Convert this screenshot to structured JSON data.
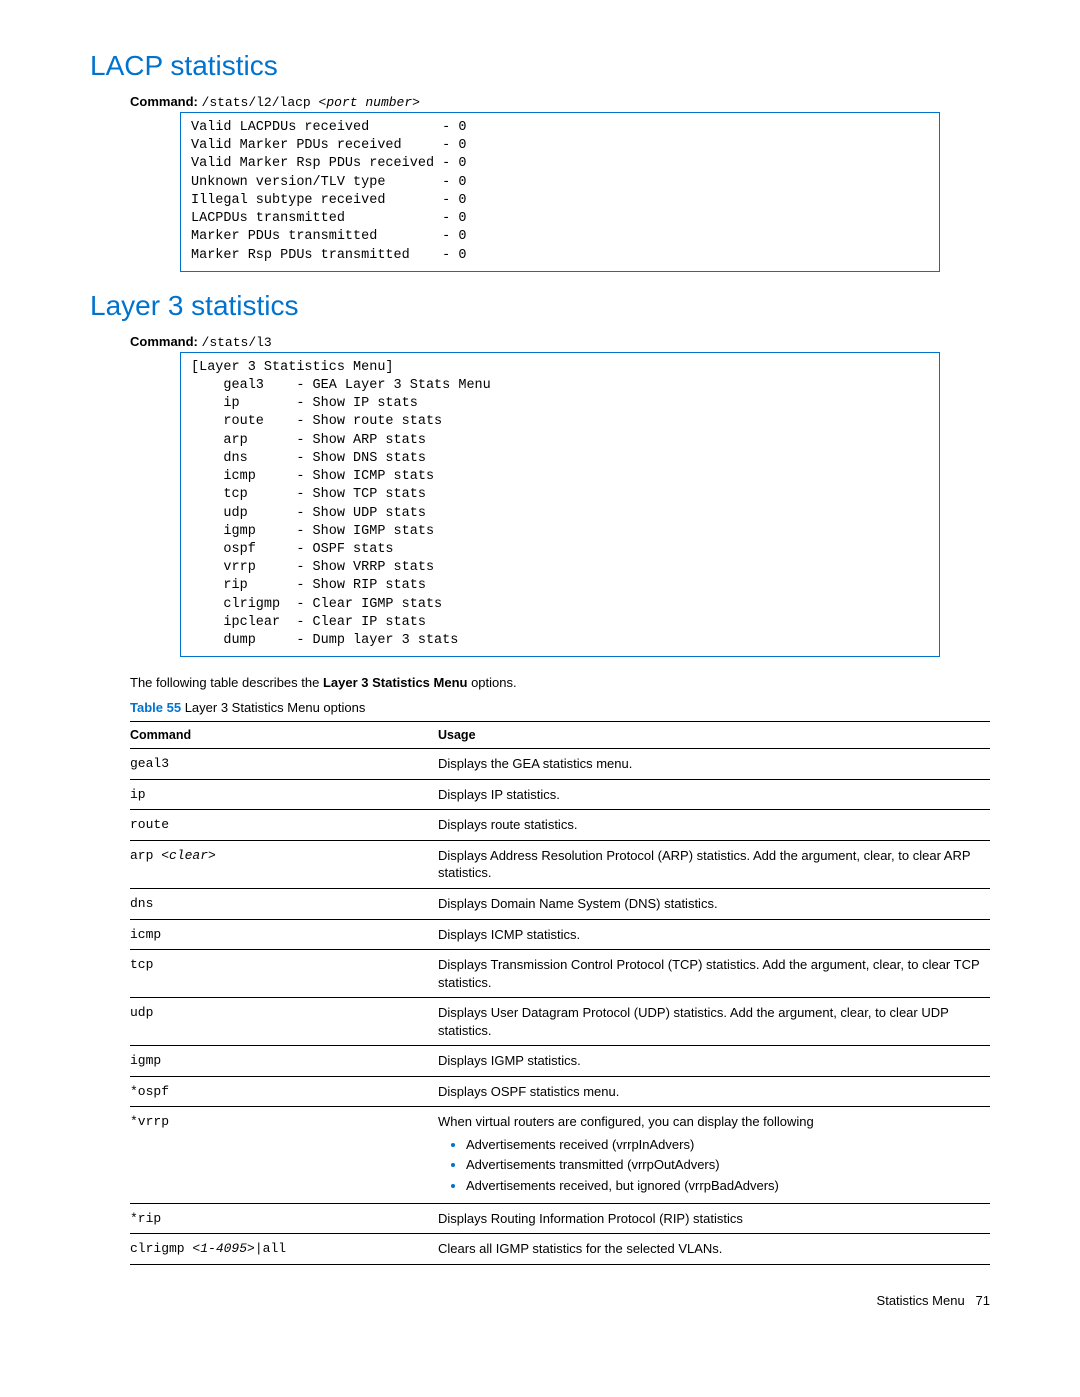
{
  "section1": {
    "heading": "LACP statistics",
    "command_label": "Command:",
    "command_path": "/stats/l2/lacp ",
    "command_arg": "<port number>",
    "codebox": "Valid LACPDUs received         - 0\nValid Marker PDUs received     - 0\nValid Marker Rsp PDUs received - 0\nUnknown version/TLV type       - 0\nIllegal subtype received       - 0\nLACPDUs transmitted            - 0\nMarker PDUs transmitted        - 0\nMarker Rsp PDUs transmitted    - 0"
  },
  "section2": {
    "heading": "Layer 3 statistics",
    "command_label": "Command:",
    "command_path": "/stats/l3",
    "codebox": "[Layer 3 Statistics Menu]\n    geal3    - GEA Layer 3 Stats Menu\n    ip       - Show IP stats\n    route    - Show route stats\n    arp      - Show ARP stats\n    dns      - Show DNS stats\n    icmp     - Show ICMP stats\n    tcp      - Show TCP stats\n    udp      - Show UDP stats\n    igmp     - Show IGMP stats\n    ospf     - OSPF stats\n    vrrp     - Show VRRP stats\n    rip      - Show RIP stats\n    clrigmp  - Clear IGMP stats\n    ipclear  - Clear IP stats\n    dump     - Dump layer 3 stats",
    "desc_prefix": "The following table describes the ",
    "desc_bold": "Layer 3 Statistics Menu",
    "desc_suffix": " options.",
    "caption_label": "Table 55",
    "caption_text": "Layer 3 Statistics Menu options",
    "columns": [
      "Command",
      "Usage"
    ],
    "rows": [
      {
        "cmd": "geal3",
        "usage_html": "Displays the GEA statistics menu."
      },
      {
        "cmd": "ip",
        "usage_html": "Displays IP statistics."
      },
      {
        "cmd": "route",
        "usage_html": "Displays route statistics."
      },
      {
        "cmd_html": "arp <span class=\"cmd-arg\">&lt;clear&gt;</span>",
        "usage_html": "Displays Address Resolution Protocol (ARP) statistics. Add the argument, clear, to clear ARP statistics."
      },
      {
        "cmd": "dns",
        "usage_html": "Displays Domain Name System (DNS) statistics."
      },
      {
        "cmd": "icmp",
        "usage_html": "Displays ICMP statistics."
      },
      {
        "cmd": "tcp",
        "usage_html": "Displays Transmission Control Protocol (TCP) statistics. Add the argument, clear, to clear TCP statistics."
      },
      {
        "cmd": "udp",
        "usage_html": "Displays User Datagram Protocol (UDP) statistics. Add the argument, clear, to clear UDP statistics."
      },
      {
        "cmd": "igmp",
        "usage_html": "Displays IGMP statistics."
      },
      {
        "cmd": "*ospf",
        "usage_html": "Displays OSPF statistics menu."
      },
      {
        "cmd": "*vrrp",
        "usage_html": "When virtual routers are configured, you can display the following<ul class=\"bullet-list\"><li>Advertisements received (vrrpInAdvers)</li><li>Advertisements transmitted (vrrpOutAdvers)</li><li>Advertisements received, but ignored (vrrpBadAdvers)</li></ul>"
      },
      {
        "cmd": "*rip",
        "usage_html": "Displays Routing Information Protocol (RIP) statistics"
      },
      {
        "cmd_html": "clrigmp <span class=\"cmd-arg\">&lt;1-4095&gt;</span>|all",
        "usage_html": "Clears all IGMP statistics for the selected VLANs."
      }
    ]
  },
  "footer": {
    "text": "Statistics Menu",
    "page": "71"
  }
}
